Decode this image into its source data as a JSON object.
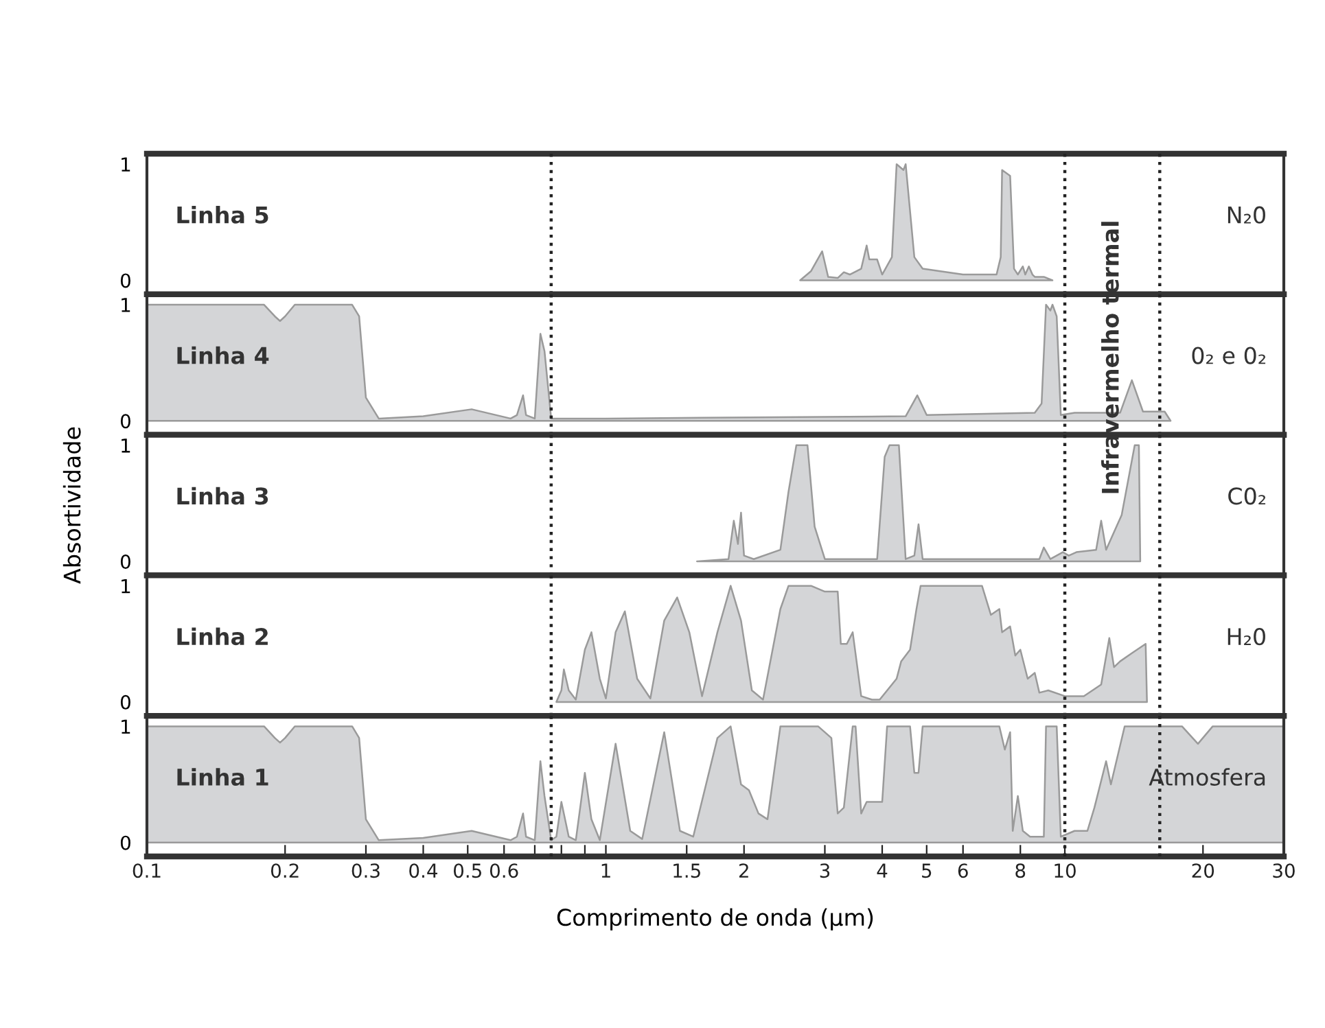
{
  "chart_data": [
    {
      "type": "area",
      "color": "#d4d5d7",
      "xlim": [
        0.1,
        30
      ],
      "ylim": [
        -0.12,
        1.09
      ],
      "yticks": [
        0,
        1
      ],
      "log": "x",
      "tick_labels": "y",
      "grid": false,
      "legend": false,
      "x": [
        2.65,
        2.8,
        2.96,
        3.05,
        3.2,
        3.3,
        3.4,
        3.6,
        3.7,
        3.75,
        3.9,
        4.0,
        4.2,
        4.3,
        4.45,
        4.5,
        4.7,
        4.9,
        6.0,
        7.1,
        7.25,
        7.3,
        7.6,
        7.75,
        7.9,
        8.1,
        8.2,
        8.35,
        8.5,
        8.6,
        9.0,
        9.4
      ],
      "values": [
        0,
        0.08,
        0.25,
        0.03,
        0.02,
        0.07,
        0.05,
        0.1,
        0.3,
        0.18,
        0.18,
        0.05,
        0.2,
        1.0,
        0.95,
        1.0,
        0.2,
        0.1,
        0.05,
        0.05,
        0.2,
        0.95,
        0.9,
        0.1,
        0.05,
        0.12,
        0.05,
        0.12,
        0.05,
        0.03,
        0.03,
        0
      ],
      "ref_lines": [
        {
          "axis": "x",
          "value": 0.76,
          "line_style": "dotted"
        },
        {
          "axis": "x",
          "value": 10,
          "line_style": "dotted"
        },
        {
          "axis": "x",
          "value": 16.1,
          "line_style": "dotted"
        }
      ],
      "annotations": [
        "Linha 5",
        "N₂0"
      ]
    },
    {
      "type": "area",
      "color": "#d4d5d7",
      "xlim": [
        0.1,
        30
      ],
      "ylim": [
        -0.12,
        1.09
      ],
      "yticks": [
        0,
        1
      ],
      "log": "x",
      "tick_labels": "y",
      "grid": false,
      "legend": false,
      "x": [
        0.1,
        0.18,
        0.19,
        0.195,
        0.2,
        0.21,
        0.28,
        0.29,
        0.3,
        0.32,
        0.4,
        0.51,
        0.62,
        0.64,
        0.66,
        0.67,
        0.7,
        0.72,
        0.735,
        0.76,
        1.0,
        4.5,
        4.77,
        5.0,
        8.6,
        8.9,
        9.1,
        9.3,
        9.4,
        9.6,
        9.8,
        10.5,
        13.2,
        14.0,
        14.8,
        16.5,
        17.0
      ],
      "values": [
        1,
        1,
        0.9,
        0.86,
        0.9,
        1,
        1,
        0.9,
        0.2,
        0.02,
        0.04,
        0.1,
        0.02,
        0.05,
        0.22,
        0.05,
        0.02,
        0.75,
        0.6,
        0.02,
        0.02,
        0.04,
        0.22,
        0.05,
        0.07,
        0.15,
        1.0,
        0.95,
        1.0,
        0.9,
        0.05,
        0.07,
        0.07,
        0.35,
        0.08,
        0.08,
        0
      ],
      "ref_lines": [
        {
          "axis": "x",
          "value": 0.76,
          "line_style": "dotted"
        },
        {
          "axis": "x",
          "value": 10,
          "line_style": "dotted"
        },
        {
          "axis": "x",
          "value": 16.1,
          "line_style": "dotted"
        }
      ],
      "annotations": [
        "Linha 4",
        "0₂ e 0₂",
        "Infravermelho termal"
      ]
    },
    {
      "type": "area",
      "color": "#d4d5d7",
      "xlim": [
        0.1,
        30
      ],
      "ylim": [
        -0.12,
        1.09
      ],
      "yticks": [
        0,
        1
      ],
      "log": "x",
      "tick_labels": "y",
      "grid": false,
      "legend": false,
      "ylabel": "Absortividade",
      "x": [
        1.58,
        1.85,
        1.9,
        1.94,
        1.97,
        2.0,
        2.1,
        2.4,
        2.5,
        2.6,
        2.75,
        2.85,
        3.0,
        3.9,
        4.05,
        4.15,
        4.35,
        4.5,
        4.7,
        4.8,
        4.9,
        8.8,
        9.0,
        9.3,
        9.9,
        10.2,
        10.6,
        11.7,
        12.0,
        12.3,
        13.3,
        14.2,
        14.5,
        14.6
      ],
      "values": [
        0,
        0.02,
        0.35,
        0.15,
        0.42,
        0.05,
        0.02,
        0.1,
        0.6,
        1.0,
        1.0,
        0.3,
        0.02,
        0.02,
        0.9,
        1.0,
        1.0,
        0.02,
        0.05,
        0.32,
        0.02,
        0.02,
        0.12,
        0.02,
        0.08,
        0.05,
        0.08,
        0.1,
        0.35,
        0.1,
        0.4,
        1.0,
        1.0,
        0
      ],
      "ref_lines": [
        {
          "axis": "x",
          "value": 0.76,
          "line_style": "dotted"
        },
        {
          "axis": "x",
          "value": 10,
          "line_style": "dotted"
        },
        {
          "axis": "x",
          "value": 16.1,
          "line_style": "dotted"
        }
      ],
      "annotations": [
        "Linha 3",
        "C0₂"
      ]
    },
    {
      "type": "area",
      "color": "#d4d5d7",
      "xlim": [
        0.1,
        30
      ],
      "ylim": [
        -0.12,
        1.09
      ],
      "yticks": [
        0,
        1
      ],
      "log": "x",
      "tick_labels": "y",
      "grid": false,
      "legend": false,
      "x": [
        0.78,
        0.8,
        0.81,
        0.83,
        0.86,
        0.9,
        0.93,
        0.97,
        1.0,
        1.05,
        1.1,
        1.17,
        1.25,
        1.34,
        1.43,
        1.52,
        1.62,
        1.75,
        1.87,
        1.97,
        2.08,
        2.2,
        2.4,
        2.5,
        2.8,
        3.0,
        3.2,
        3.25,
        3.35,
        3.45,
        3.6,
        3.8,
        3.95,
        4.2,
        4.3,
        4.4,
        4.6,
        4.75,
        4.85,
        4.9,
        5.1,
        6.6,
        6.9,
        7.2,
        7.3,
        7.6,
        7.8,
        8.0,
        8.3,
        8.6,
        8.8,
        9.2,
        10,
        11,
        12,
        12.5,
        12.8,
        13.2,
        14,
        15,
        15.1
      ],
      "values": [
        0,
        0.1,
        0.28,
        0.1,
        0.02,
        0.45,
        0.6,
        0.2,
        0.03,
        0.6,
        0.78,
        0.2,
        0.03,
        0.7,
        0.9,
        0.6,
        0.05,
        0.6,
        1.0,
        0.7,
        0.1,
        0.02,
        0.8,
        1.0,
        1.0,
        0.95,
        0.95,
        0.5,
        0.5,
        0.6,
        0.05,
        0.02,
        0.02,
        0.15,
        0.2,
        0.35,
        0.45,
        0.8,
        1.0,
        1.0,
        1.0,
        1.0,
        0.75,
        0.8,
        0.6,
        0.65,
        0.4,
        0.45,
        0.2,
        0.25,
        0.08,
        0.1,
        0.05,
        0.05,
        0.15,
        0.55,
        0.3,
        0.35,
        0.42,
        0.5,
        0
      ],
      "ref_lines": [
        {
          "axis": "x",
          "value": 0.76,
          "line_style": "dotted"
        },
        {
          "axis": "x",
          "value": 10,
          "line_style": "dotted"
        },
        {
          "axis": "x",
          "value": 16.1,
          "line_style": "dotted"
        }
      ],
      "annotations": [
        "Linha 2",
        "H₂0"
      ]
    },
    {
      "type": "area",
      "color": "#d4d5d7",
      "xlim": [
        0.1,
        30
      ],
      "ylim": [
        -0.12,
        1.09
      ],
      "yticks": [
        0,
        1
      ],
      "log": "x",
      "grid": false,
      "legend": false,
      "xlabel": "Comprimento de onda (µm)",
      "xticks": [
        0.1,
        0.2,
        0.3,
        0.4,
        0.5,
        0.6,
        {
          "value": 0.7,
          "label": null
        },
        {
          "value": 0.8,
          "label": null
        },
        {
          "value": 0.9,
          "label": null
        },
        1,
        1.5,
        2,
        3,
        4,
        5,
        6,
        8,
        10,
        20,
        30
      ],
      "x": [
        0.1,
        0.18,
        0.19,
        0.195,
        0.2,
        0.21,
        0.28,
        0.29,
        0.3,
        0.32,
        0.4,
        0.51,
        0.62,
        0.64,
        0.66,
        0.67,
        0.7,
        0.72,
        0.735,
        0.76,
        0.78,
        0.8,
        0.83,
        0.86,
        0.9,
        0.93,
        0.97,
        1.05,
        1.13,
        1.2,
        1.34,
        1.45,
        1.55,
        1.75,
        1.87,
        1.97,
        2.05,
        2.15,
        2.25,
        2.4,
        2.9,
        3.1,
        3.2,
        3.3,
        3.45,
        3.5,
        3.6,
        3.7,
        4.0,
        4.1,
        4.6,
        4.7,
        4.8,
        4.9,
        7.2,
        7.4,
        7.6,
        7.7,
        7.9,
        8.1,
        8.4,
        9.0,
        9.1,
        9.6,
        9.8,
        10.5,
        11.2,
        11.6,
        12.3,
        12.6,
        13.5,
        18,
        19.5,
        21,
        30
      ],
      "values": [
        1,
        1,
        0.9,
        0.86,
        0.9,
        1,
        1,
        0.9,
        0.2,
        0.02,
        0.04,
        0.1,
        0.02,
        0.05,
        0.25,
        0.05,
        0.02,
        0.7,
        0.4,
        0.02,
        0.05,
        0.35,
        0.05,
        0.02,
        0.6,
        0.2,
        0.02,
        0.85,
        0.1,
        0.03,
        0.95,
        0.1,
        0.05,
        0.9,
        1.0,
        0.5,
        0.45,
        0.25,
        0.2,
        1.0,
        1.0,
        0.9,
        0.25,
        0.3,
        1.0,
        1.0,
        0.25,
        0.35,
        0.35,
        1.0,
        1.0,
        0.6,
        0.6,
        1.0,
        1.0,
        0.8,
        0.95,
        0.1,
        0.4,
        0.1,
        0.05,
        0.05,
        1.0,
        1.0,
        0.05,
        0.1,
        0.1,
        0.3,
        0.7,
        0.5,
        1.0,
        1.0,
        0.85,
        1.0,
        1.0
      ],
      "ref_lines": [
        {
          "axis": "x",
          "value": 0.76,
          "line_style": "dotted"
        },
        {
          "axis": "x",
          "value": 10,
          "line_style": "dotted"
        },
        {
          "axis": "x",
          "value": 16.1,
          "line_style": "dotted"
        }
      ],
      "annotations": [
        "Linha 1",
        "Atmosfera"
      ]
    }
  ]
}
